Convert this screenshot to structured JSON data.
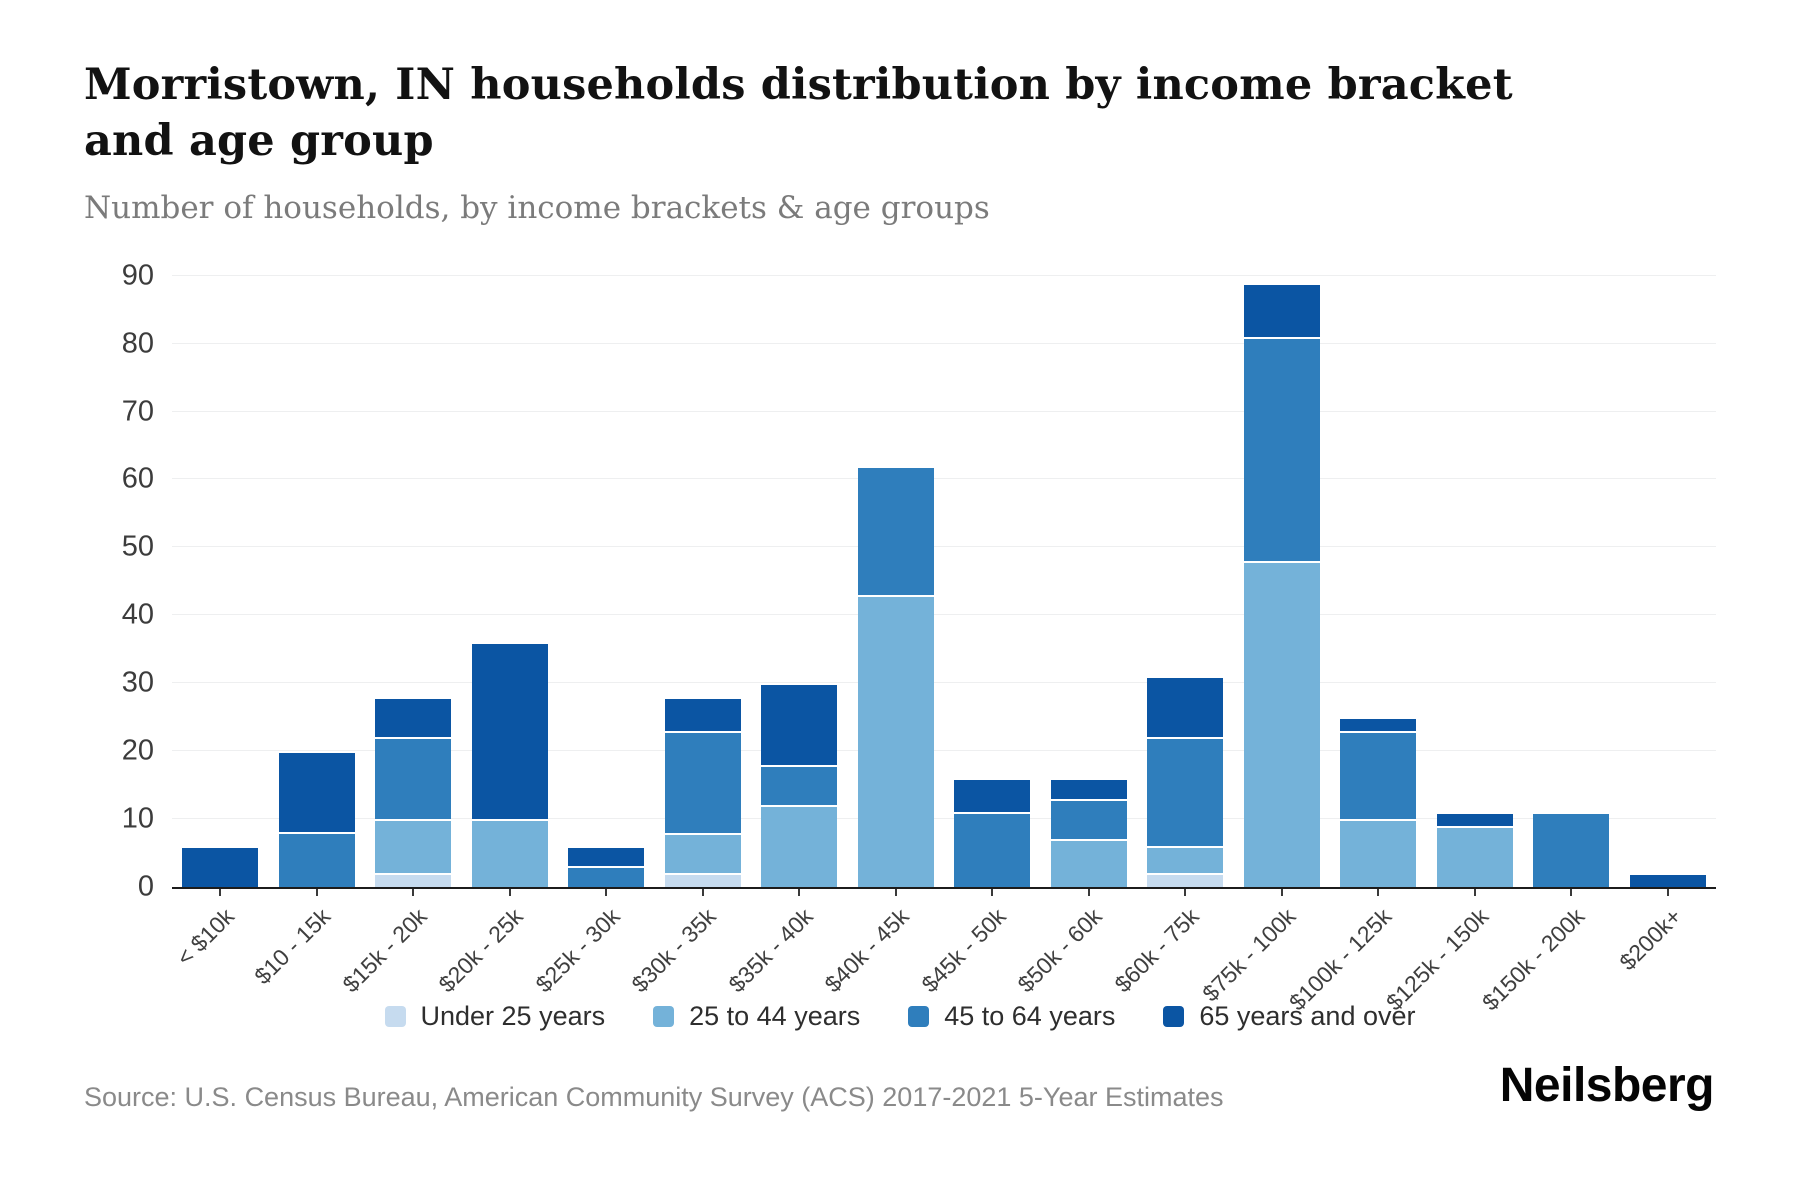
{
  "header": {
    "title": "Morristown, IN households distribution by income bracket and age group",
    "subtitle": "Number of households, by income brackets & age groups"
  },
  "chart_data": {
    "type": "bar",
    "stacked": true,
    "categories": [
      "< $10k",
      "$10 - 15k",
      "$15k - 20k",
      "$20k - 25k",
      "$25k - 30k",
      "$30k - 35k",
      "$35k - 40k",
      "$40k - 45k",
      "$45k - 50k",
      "$50k - 60k",
      "$60k - 75k",
      "$75k - 100k",
      "$100k - 125k",
      "$125k - 150k",
      "$150k - 200k",
      "$200k+"
    ],
    "series": [
      {
        "name": "Under 25 years",
        "color": "#c6dbef",
        "values": [
          0,
          0,
          2,
          0,
          0,
          2,
          0,
          0,
          0,
          0,
          2,
          0,
          0,
          0,
          0,
          0
        ]
      },
      {
        "name": "25 to 44 years",
        "color": "#74b2d9",
        "values": [
          0,
          0,
          8,
          10,
          0,
          6,
          12,
          43,
          0,
          7,
          4,
          48,
          10,
          9,
          0,
          0
        ]
      },
      {
        "name": "45 to 64 years",
        "color": "#2f7ebc",
        "values": [
          0,
          8,
          12,
          0,
          3,
          15,
          6,
          19,
          11,
          6,
          16,
          33,
          13,
          0,
          11,
          0
        ]
      },
      {
        "name": "65 years and over",
        "color": "#0b55a3",
        "values": [
          6,
          12,
          6,
          26,
          3,
          5,
          12,
          0,
          5,
          3,
          9,
          8,
          2,
          2,
          0,
          2
        ]
      }
    ],
    "totals": [
      6,
      20,
      28,
      36,
      6,
      28,
      30,
      62,
      16,
      16,
      31,
      89,
      25,
      11,
      11,
      2
    ],
    "ylim": [
      0,
      90
    ],
    "yticks": [
      0,
      10,
      20,
      30,
      40,
      50,
      60,
      70,
      80,
      90
    ],
    "grid": "horizontal",
    "legend_position": "bottom"
  },
  "footer": {
    "source": "Source: U.S. Census Bureau, American Community Survey (ACS) 2017-2021 5-Year Estimates",
    "brand": "Neilsberg"
  }
}
